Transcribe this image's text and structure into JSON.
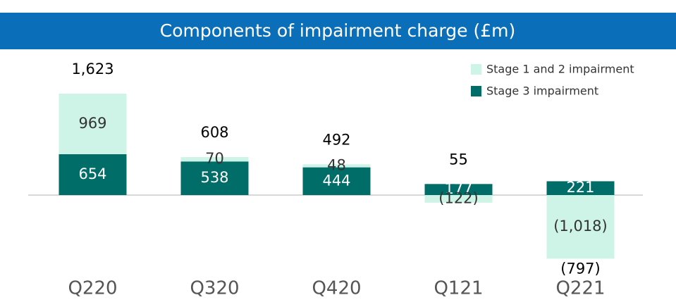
{
  "chart_data": {
    "type": "bar",
    "stacked": true,
    "title": "Components of impairment charge (£m)",
    "categories": [
      "Q220",
      "Q320",
      "Q420",
      "Q121",
      "Q221"
    ],
    "series": [
      {
        "name": "Stage 3 impairment",
        "color": "#006d69",
        "values": [
          654,
          538,
          444,
          177,
          221
        ]
      },
      {
        "name": "Stage 1 and 2 impairment",
        "color": "#cdf4e6",
        "values": [
          969,
          70,
          48,
          -122,
          -1018
        ],
        "value_labels": [
          "969",
          "70",
          "48",
          "(122)",
          "(1,018)"
        ]
      }
    ],
    "totals": {
      "values": [
        1623,
        608,
        492,
        55,
        -797
      ],
      "value_labels": [
        "1,623",
        "608",
        "492",
        "55",
        "(797)"
      ]
    }
  }
}
